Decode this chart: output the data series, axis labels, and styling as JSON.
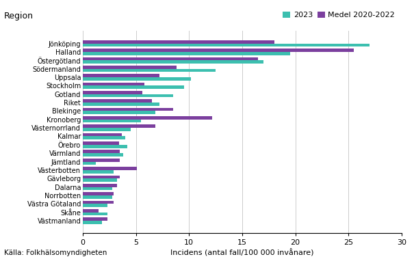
{
  "regions": [
    "Jönköping",
    "Halland",
    "Östergötland",
    "Södermanland",
    "Uppsala",
    "Stockholm",
    "Gotland",
    "Riket",
    "Blekinge",
    "Kronoberg",
    "Västernorrland",
    "Kalmar",
    "Örebro",
    "Värmland",
    "Jämtland",
    "Västerbotten",
    "Gävleborg",
    "Dalarna",
    "Norrbotten",
    "Västra Götaland",
    "Skåne",
    "Västmanland"
  ],
  "val_2023": [
    27.0,
    19.5,
    17.0,
    12.5,
    10.2,
    9.5,
    8.5,
    7.2,
    6.8,
    5.5,
    4.5,
    4.0,
    4.2,
    3.8,
    1.2,
    2.9,
    3.2,
    2.8,
    2.8,
    2.3,
    2.3,
    1.8
  ],
  "val_medel": [
    18.0,
    25.5,
    16.5,
    8.8,
    7.2,
    5.8,
    5.6,
    6.5,
    8.5,
    12.2,
    6.8,
    3.7,
    3.4,
    3.5,
    3.5,
    5.1,
    3.5,
    3.2,
    2.9,
    2.9,
    1.5,
    2.3
  ],
  "color_2023": "#3cbfaf",
  "color_medel": "#7b3f9e",
  "title": "Region",
  "xlabel": "Incidens (antal fall/100 000 invånare)",
  "legend_2023": "2023",
  "legend_medel": "Medel 2020-2022",
  "xlim": [
    0,
    30
  ],
  "xticks": [
    0,
    5,
    10,
    15,
    20,
    25,
    30
  ],
  "source": "Källa: Folkhälsomyndigheten",
  "background_color": "#ffffff"
}
